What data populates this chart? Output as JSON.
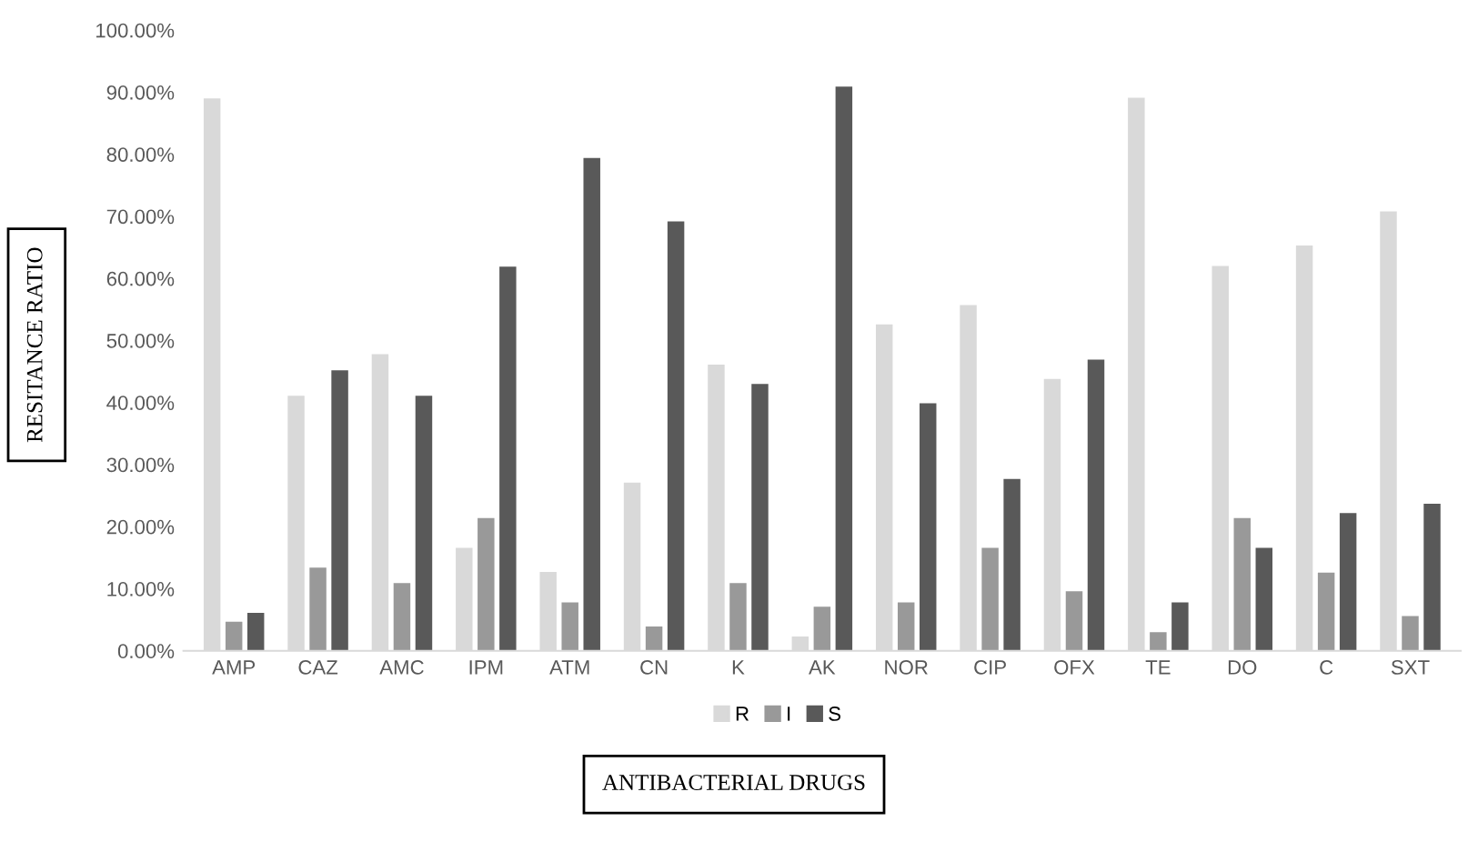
{
  "chart_data": {
    "type": "bar",
    "xlabel": "ANTIBACTERIAL DRUGS",
    "ylabel": "RESITANCE RATIO",
    "categories": [
      "AMP",
      "CAZ",
      "AMC",
      "IPM",
      "ATM",
      "CN",
      "K",
      "AK",
      "NOR",
      "CIP",
      "OFX",
      "TE",
      "DO",
      "C",
      "SXT"
    ],
    "series": [
      {
        "name": "R",
        "color": "#d9d9d9",
        "values": [
          89.0,
          41.1,
          47.8,
          16.6,
          12.7,
          27.1,
          46.1,
          2.3,
          52.6,
          55.7,
          43.8,
          89.1,
          62.0,
          65.3,
          70.8
        ]
      },
      {
        "name": "I",
        "color": "#999999",
        "values": [
          4.7,
          13.4,
          10.9,
          21.4,
          7.8,
          3.9,
          10.9,
          7.1,
          7.8,
          16.6,
          9.6,
          3.0,
          21.4,
          12.6,
          5.6
        ]
      },
      {
        "name": "S",
        "color": "#595959",
        "values": [
          6.1,
          45.2,
          41.1,
          61.9,
          79.4,
          69.2,
          43.0,
          90.9,
          39.9,
          27.7,
          46.9,
          7.8,
          16.6,
          22.2,
          23.7
        ]
      }
    ],
    "ylim": [
      0,
      100
    ],
    "yticks": [
      {
        "value": 0,
        "label": "0.00%"
      },
      {
        "value": 10,
        "label": "10.00%"
      },
      {
        "value": 20,
        "label": "20.00%"
      },
      {
        "value": 30,
        "label": "30.00%"
      },
      {
        "value": 40,
        "label": "40.00%"
      },
      {
        "value": 50,
        "label": "50.00%"
      },
      {
        "value": 60,
        "label": "60.00%"
      },
      {
        "value": 70,
        "label": "70.00%"
      },
      {
        "value": 80,
        "label": "80.00%"
      },
      {
        "value": 90,
        "label": "90.00%"
      },
      {
        "value": 100,
        "label": "100.00%"
      }
    ],
    "grid": false,
    "legend": "bottom"
  }
}
